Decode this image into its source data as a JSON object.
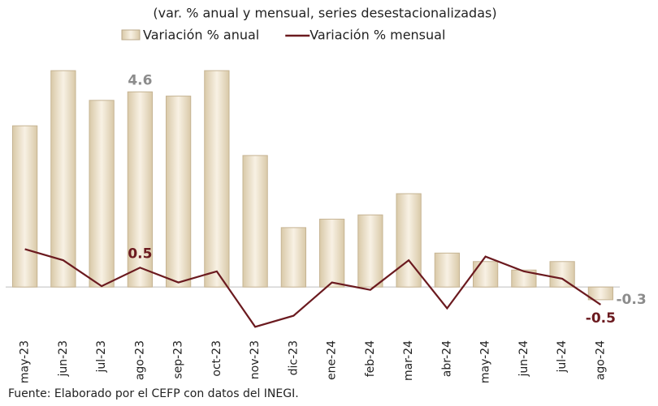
{
  "chart_data": {
    "type": "bar-line",
    "title": "(var. % anual y mensual, series desestacionalizadas)",
    "source": "Fuente: Elaborado por el CEFP con datos del INEGI.",
    "categories": [
      "may-23",
      "jun-23",
      "jul-23",
      "ago-23",
      "sep-23",
      "oct-23",
      "nov-23",
      "dic-23",
      "ene-24",
      "feb-24",
      "mar-24",
      "abr-24",
      "may-24",
      "jun-24",
      "jul-24",
      "ago-24"
    ],
    "ylim": [
      -1.2,
      5.6
    ],
    "y2lim": [
      -1.4,
      6.4
    ],
    "series": [
      {
        "name": "Variación % anual",
        "type": "bar",
        "color": "#efe3cc",
        "values": [
          3.8,
          5.1,
          4.4,
          4.6,
          4.5,
          5.1,
          3.1,
          1.4,
          1.6,
          1.7,
          2.2,
          0.8,
          0.6,
          0.4,
          0.6,
          -0.3
        ],
        "value_labels": [
          null,
          null,
          null,
          "4.6",
          null,
          null,
          null,
          null,
          null,
          null,
          null,
          null,
          null,
          null,
          null,
          "-0.3"
        ],
        "label_color": "#8c8c8c"
      },
      {
        "name": "Variación % mensual",
        "type": "line",
        "axis": "y2",
        "color": "#6b1a1f",
        "values": [
          1.0,
          0.7,
          0.0,
          0.5,
          0.1,
          0.4,
          -1.1,
          -0.8,
          0.1,
          -0.1,
          0.7,
          -0.6,
          0.8,
          0.4,
          0.2,
          -0.5
        ],
        "value_labels": [
          null,
          null,
          null,
          "0.5",
          null,
          null,
          null,
          null,
          null,
          null,
          null,
          null,
          null,
          null,
          null,
          "-0.5"
        ],
        "label_color": "#6b1a1f"
      }
    ]
  }
}
